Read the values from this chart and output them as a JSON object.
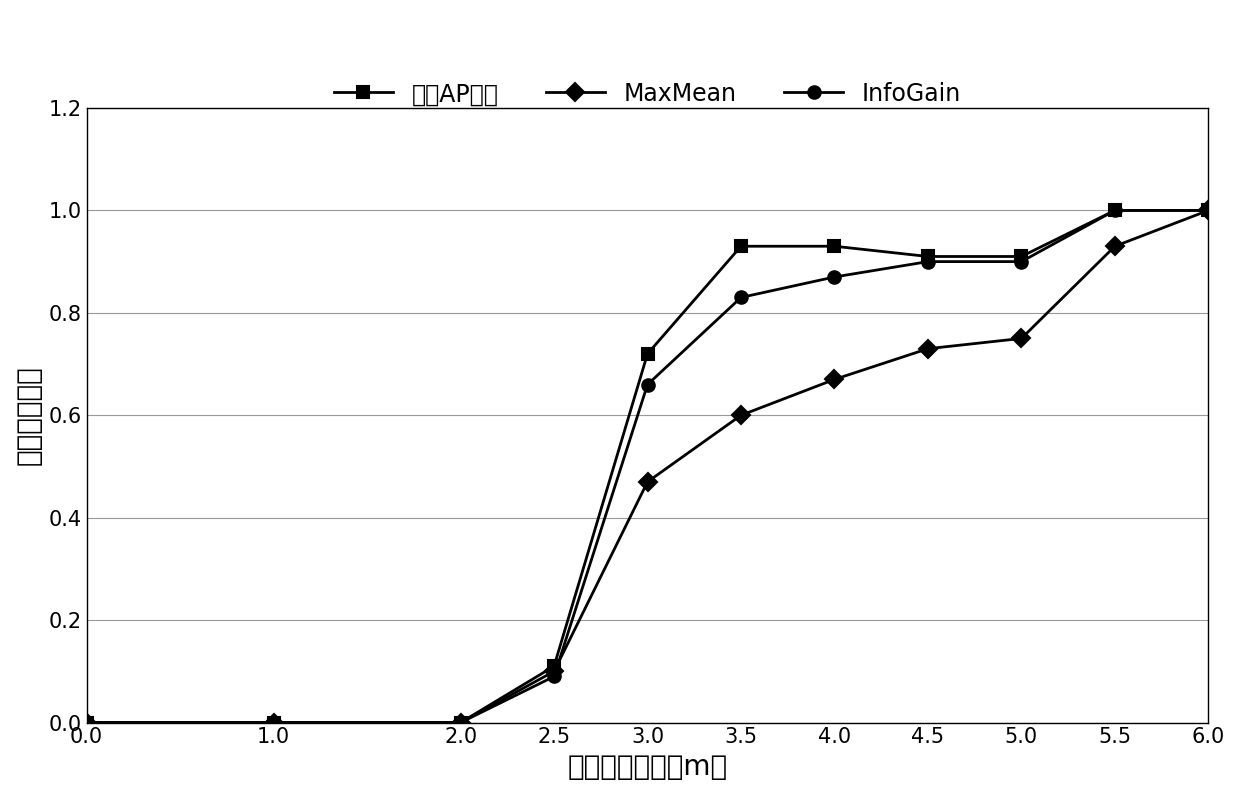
{
  "series": [
    {
      "label": "稳定AP优先",
      "marker": "s",
      "color": "#000000",
      "x": [
        0.0,
        1.0,
        2.0,
        2.5,
        3.0,
        3.5,
        4.0,
        4.5,
        5.0,
        5.5,
        6.0
      ],
      "y": [
        0.0,
        0.0,
        0.0,
        0.11,
        0.72,
        0.93,
        0.93,
        0.91,
        0.91,
        1.0,
        1.0
      ],
      "markerfacecolor": "#000000"
    },
    {
      "label": "MaxMean",
      "marker": "D",
      "color": "#000000",
      "x": [
        0.0,
        1.0,
        2.0,
        2.5,
        3.0,
        3.5,
        4.0,
        4.5,
        5.0,
        5.5,
        6.0
      ],
      "y": [
        0.0,
        0.0,
        0.0,
        0.1,
        0.47,
        0.6,
        0.67,
        0.73,
        0.75,
        0.93,
        1.0
      ],
      "markerfacecolor": "#000000"
    },
    {
      "label": "InfoGain",
      "marker": "o",
      "color": "#000000",
      "x": [
        0.0,
        1.0,
        2.0,
        2.5,
        3.0,
        3.5,
        4.0,
        4.5,
        5.0,
        5.5,
        6.0
      ],
      "y": [
        0.0,
        0.0,
        0.0,
        0.09,
        0.66,
        0.83,
        0.87,
        0.9,
        0.9,
        1.0,
        1.0
      ],
      "markerfacecolor": "#000000"
    }
  ],
  "xlabel": "定位误差距离（m）",
  "ylabel": "误差概率分布",
  "xlim": [
    0.0,
    6.0
  ],
  "ylim": [
    0.0,
    1.2
  ],
  "xticks": [
    0.0,
    1.0,
    2.0,
    2.5,
    3.0,
    3.5,
    4.0,
    4.5,
    5.0,
    5.5,
    6.0
  ],
  "xtick_labels": [
    "0.0",
    "1.0",
    "2.0",
    "2.5",
    "3.0",
    "3.5",
    "4.0",
    "4.5",
    "5.0",
    "5.5",
    "6.0"
  ],
  "yticks": [
    0.0,
    0.2,
    0.4,
    0.6,
    0.8,
    1.0,
    1.2
  ],
  "ytick_labels": [
    "0.0",
    "0.2",
    "0.4",
    "0.6",
    "0.8",
    "1.0",
    "1.2"
  ],
  "background_color": "#ffffff",
  "grid_color": "#999999",
  "line_width": 2.0,
  "marker_size": 9,
  "font_size_axis_label": 20,
  "font_size_tick": 15,
  "font_size_legend": 17
}
